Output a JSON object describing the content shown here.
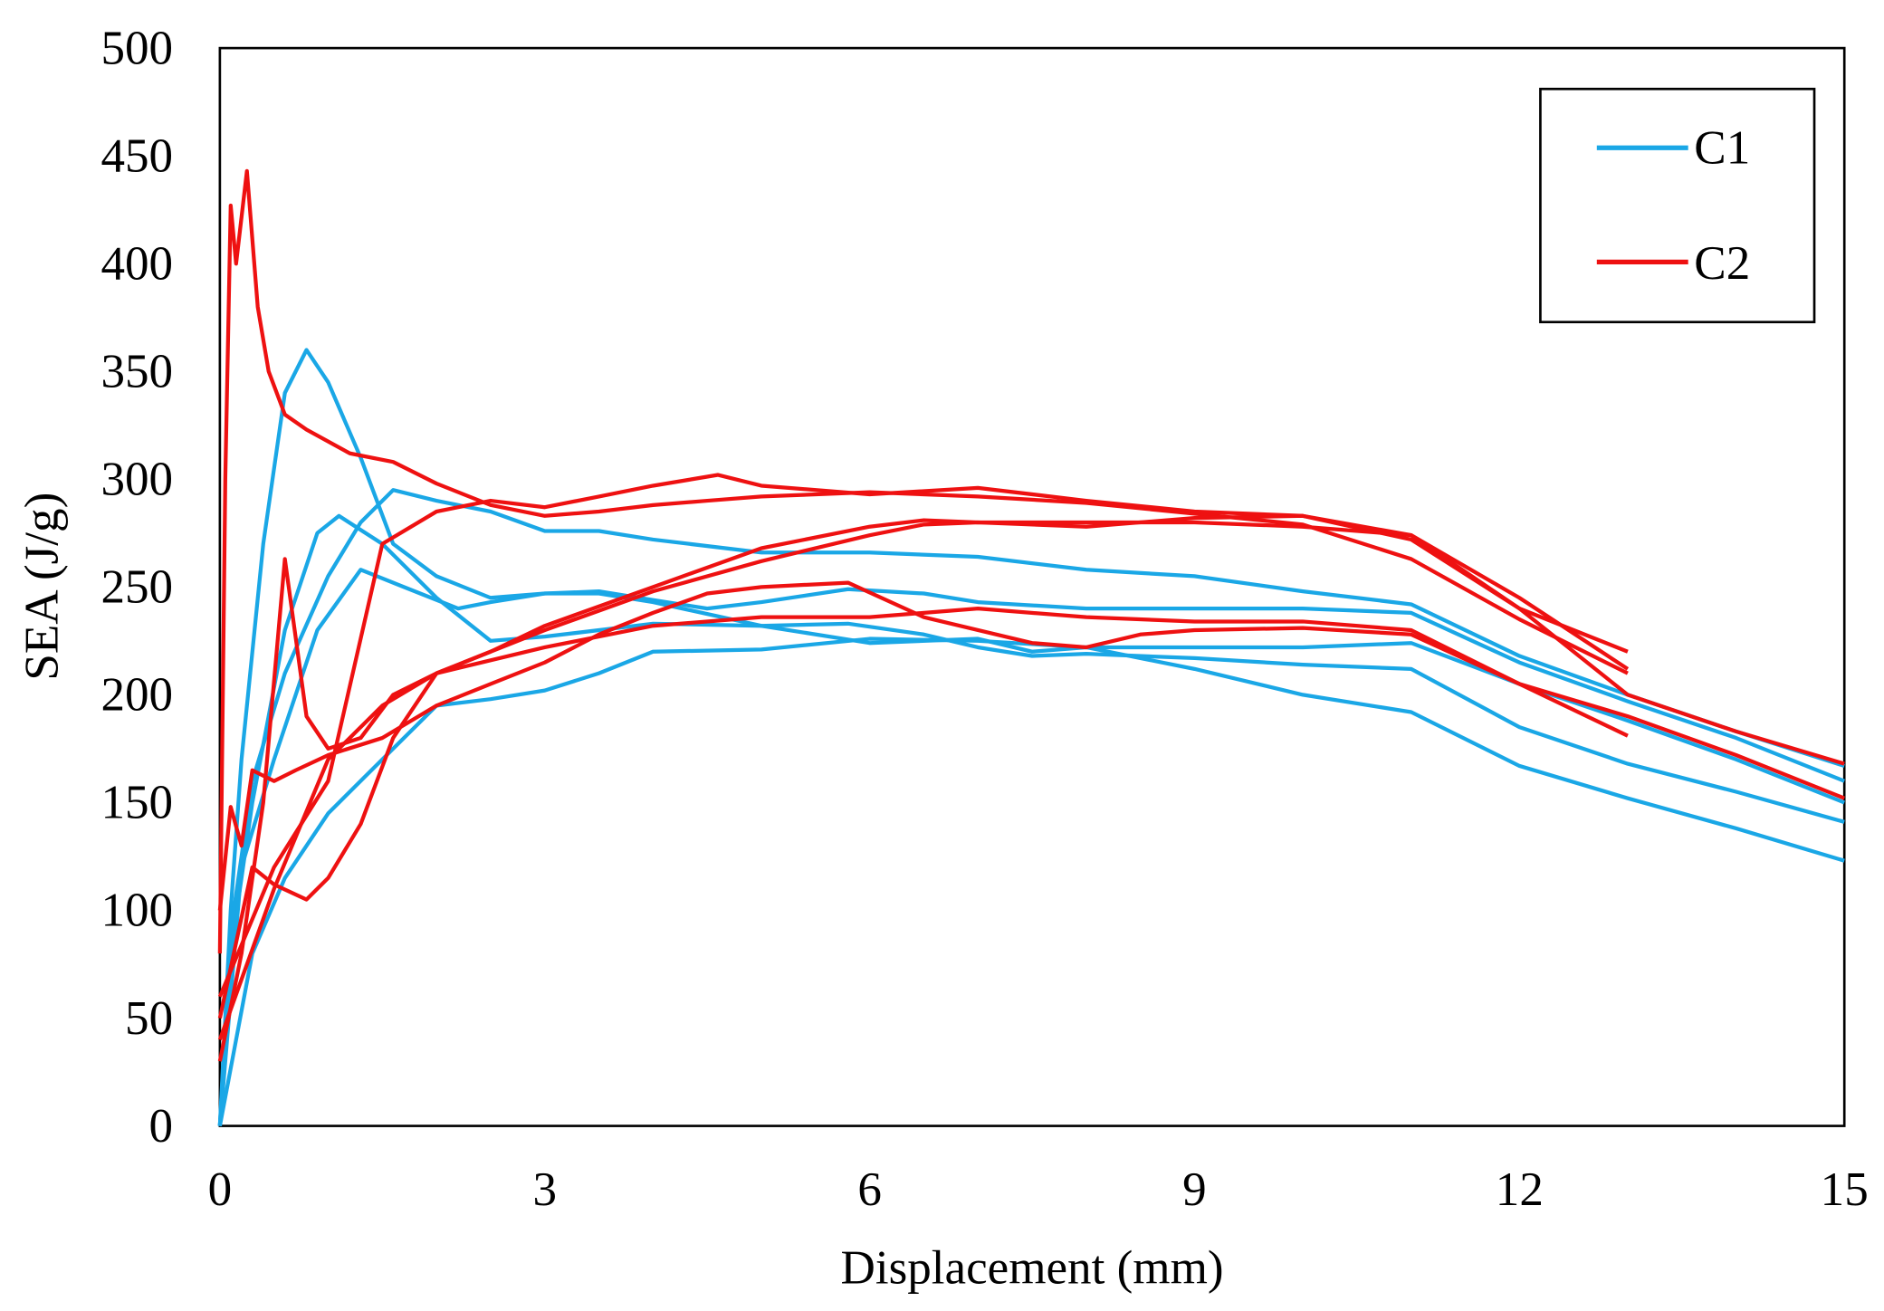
{
  "chart_data": {
    "type": "line",
    "title": "",
    "xlabel": "Displacement (mm)",
    "ylabel": "SEA (J/g)",
    "xlim": [
      0,
      15
    ],
    "ylim": [
      0,
      500
    ],
    "xticks": [
      0,
      3,
      6,
      9,
      12,
      15
    ],
    "yticks": [
      0,
      50,
      100,
      150,
      200,
      250,
      300,
      350,
      400,
      450,
      500
    ],
    "grid": false,
    "legend_position": "top-right",
    "legend": [
      {
        "name": "C1",
        "color": "#1AA7E6"
      },
      {
        "name": "C2",
        "color": "#EE1111"
      }
    ],
    "series": [
      {
        "name": "C1",
        "color": "#1AA7E6",
        "points": [
          [
            0,
            0
          ],
          [
            0.1,
            100
          ],
          [
            0.2,
            170
          ],
          [
            0.4,
            270
          ],
          [
            0.6,
            340
          ],
          [
            0.8,
            360
          ],
          [
            1.0,
            345
          ],
          [
            1.3,
            310
          ],
          [
            1.6,
            270
          ],
          [
            2.0,
            255
          ],
          [
            2.5,
            245
          ],
          [
            3,
            247
          ],
          [
            3.5,
            247
          ],
          [
            4,
            243
          ],
          [
            5,
            232
          ],
          [
            6,
            224
          ],
          [
            7,
            226
          ],
          [
            7.5,
            220
          ],
          [
            8,
            222
          ],
          [
            9,
            222
          ],
          [
            10,
            222
          ],
          [
            11,
            224
          ],
          [
            12,
            205
          ],
          [
            13,
            188
          ],
          [
            14,
            170
          ],
          [
            15,
            150
          ]
        ]
      },
      {
        "name": "C1",
        "color": "#1AA7E6",
        "points": [
          [
            0,
            0
          ],
          [
            0.1,
            80
          ],
          [
            0.3,
            150
          ],
          [
            0.6,
            230
          ],
          [
            0.9,
            275
          ],
          [
            1.1,
            283
          ],
          [
            1.5,
            270
          ],
          [
            2,
            245
          ],
          [
            2.5,
            225
          ],
          [
            3,
            227
          ],
          [
            4,
            233
          ],
          [
            5,
            232
          ],
          [
            5.8,
            233
          ],
          [
            6.5,
            228
          ],
          [
            7,
            222
          ],
          [
            7.5,
            218
          ],
          [
            8,
            219
          ],
          [
            9,
            217
          ],
          [
            10,
            214
          ],
          [
            11,
            212
          ],
          [
            12,
            185
          ],
          [
            13,
            168
          ],
          [
            14,
            155
          ],
          [
            15,
            141
          ]
        ]
      },
      {
        "name": "C1",
        "color": "#1AA7E6",
        "points": [
          [
            0,
            0
          ],
          [
            0.1,
            90
          ],
          [
            0.3,
            160
          ],
          [
            0.6,
            210
          ],
          [
            1.0,
            255
          ],
          [
            1.3,
            280
          ],
          [
            1.6,
            295
          ],
          [
            2,
            290
          ],
          [
            2.5,
            285
          ],
          [
            3,
            276
          ],
          [
            3.5,
            276
          ],
          [
            4,
            272
          ],
          [
            5,
            266
          ],
          [
            6,
            266
          ],
          [
            7,
            264
          ],
          [
            8,
            258
          ],
          [
            9,
            255
          ],
          [
            10,
            248
          ],
          [
            11,
            242
          ],
          [
            12,
            218
          ],
          [
            13,
            200
          ],
          [
            14,
            183
          ],
          [
            15,
            167
          ]
        ]
      },
      {
        "name": "C1",
        "color": "#1AA7E6",
        "points": [
          [
            0,
            0
          ],
          [
            0.3,
            80
          ],
          [
            0.6,
            115
          ],
          [
            1,
            145
          ],
          [
            1.5,
            170
          ],
          [
            2,
            195
          ],
          [
            2.5,
            198
          ],
          [
            3,
            202
          ],
          [
            3.5,
            210
          ],
          [
            4,
            220
          ],
          [
            5,
            221
          ],
          [
            6,
            226
          ],
          [
            7,
            225
          ],
          [
            8,
            222
          ],
          [
            9,
            212
          ],
          [
            10,
            200
          ],
          [
            11,
            192
          ],
          [
            12,
            167
          ],
          [
            13,
            152
          ],
          [
            14,
            138
          ],
          [
            15,
            123
          ]
        ]
      },
      {
        "name": "C1",
        "color": "#1AA7E6",
        "points": [
          [
            0,
            0
          ],
          [
            0.2,
            120
          ],
          [
            0.5,
            170
          ],
          [
            0.9,
            230
          ],
          [
            1.3,
            258
          ],
          [
            1.7,
            250
          ],
          [
            2.2,
            240
          ],
          [
            2.5,
            243
          ],
          [
            3,
            247
          ],
          [
            3.5,
            248
          ],
          [
            4,
            244
          ],
          [
            4.5,
            240
          ],
          [
            5,
            243
          ],
          [
            5.8,
            249
          ],
          [
            6.5,
            247
          ],
          [
            7,
            243
          ],
          [
            8,
            240
          ],
          [
            9,
            240
          ],
          [
            10,
            240
          ],
          [
            11,
            238
          ],
          [
            12,
            215
          ],
          [
            13,
            197
          ],
          [
            14,
            180
          ],
          [
            15,
            160
          ]
        ]
      },
      {
        "name": "C2",
        "color": "#EE1111",
        "points": [
          [
            0,
            80
          ],
          [
            0.05,
            300
          ],
          [
            0.1,
            427
          ],
          [
            0.15,
            400
          ],
          [
            0.25,
            443
          ],
          [
            0.35,
            380
          ],
          [
            0.45,
            350
          ],
          [
            0.6,
            330
          ],
          [
            0.8,
            323
          ],
          [
            1.2,
            312
          ],
          [
            1.6,
            308
          ],
          [
            2,
            298
          ],
          [
            2.5,
            288
          ],
          [
            3,
            283
          ],
          [
            3.5,
            285
          ],
          [
            4,
            288
          ],
          [
            4.5,
            290
          ],
          [
            5,
            292
          ],
          [
            6,
            294
          ],
          [
            7,
            292
          ],
          [
            8,
            289
          ],
          [
            9,
            284
          ],
          [
            10,
            279
          ],
          [
            11,
            263
          ],
          [
            12,
            235
          ],
          [
            13,
            210
          ]
        ]
      },
      {
        "name": "C2",
        "color": "#EE1111",
        "points": [
          [
            0,
            30
          ],
          [
            0.2,
            80
          ],
          [
            0.4,
            150
          ],
          [
            0.6,
            263
          ],
          [
            0.8,
            190
          ],
          [
            1.0,
            175
          ],
          [
            1.3,
            180
          ],
          [
            1.6,
            200
          ],
          [
            2,
            210
          ],
          [
            2.5,
            220
          ],
          [
            3,
            230
          ],
          [
            4,
            248
          ],
          [
            5,
            262
          ],
          [
            6,
            274
          ],
          [
            6.5,
            279
          ],
          [
            7,
            280
          ],
          [
            8,
            278
          ],
          [
            9,
            282
          ],
          [
            10,
            283
          ],
          [
            11,
            272
          ],
          [
            12,
            240
          ],
          [
            13,
            220
          ]
        ]
      },
      {
        "name": "C2",
        "color": "#EE1111",
        "points": [
          [
            0,
            50
          ],
          [
            0.3,
            120
          ],
          [
            0.5,
            112
          ],
          [
            0.8,
            105
          ],
          [
            1,
            115
          ],
          [
            1.3,
            140
          ],
          [
            1.6,
            180
          ],
          [
            2,
            210
          ],
          [
            2.5,
            220
          ],
          [
            3,
            232
          ],
          [
            4,
            250
          ],
          [
            5,
            268
          ],
          [
            6,
            278
          ],
          [
            6.5,
            281
          ],
          [
            7,
            280
          ],
          [
            8,
            280
          ],
          [
            9,
            280
          ],
          [
            10,
            278
          ],
          [
            11,
            274
          ],
          [
            12,
            245
          ],
          [
            13,
            212
          ]
        ]
      },
      {
        "name": "C2",
        "color": "#EE1111",
        "points": [
          [
            0,
            100
          ],
          [
            0.1,
            148
          ],
          [
            0.2,
            130
          ],
          [
            0.3,
            165
          ],
          [
            0.5,
            160
          ],
          [
            0.7,
            165
          ],
          [
            1,
            172
          ],
          [
            1.5,
            180
          ],
          [
            2,
            195
          ],
          [
            2.5,
            205
          ],
          [
            3,
            215
          ],
          [
            3.5,
            228
          ],
          [
            4,
            238
          ],
          [
            4.5,
            247
          ],
          [
            5,
            250
          ],
          [
            5.8,
            252
          ],
          [
            6.5,
            236
          ],
          [
            7,
            230
          ],
          [
            7.5,
            224
          ],
          [
            8,
            222
          ],
          [
            8.5,
            228
          ],
          [
            9,
            230
          ],
          [
            10,
            231
          ],
          [
            11,
            228
          ],
          [
            12,
            205
          ],
          [
            13,
            181
          ]
        ]
      },
      {
        "name": "C2",
        "color": "#EE1111",
        "points": [
          [
            0,
            60
          ],
          [
            0.5,
            120
          ],
          [
            1,
            160
          ],
          [
            1.5,
            270
          ],
          [
            2,
            285
          ],
          [
            2.5,
            290
          ],
          [
            3,
            287
          ],
          [
            3.5,
            292
          ],
          [
            4,
            297
          ],
          [
            4.6,
            302
          ],
          [
            5,
            297
          ],
          [
            6,
            293
          ],
          [
            7,
            296
          ],
          [
            8,
            290
          ],
          [
            9,
            285
          ],
          [
            10,
            283
          ],
          [
            11,
            274
          ],
          [
            12,
            240
          ],
          [
            13,
            200
          ],
          [
            14,
            183
          ],
          [
            15,
            168
          ]
        ]
      },
      {
        "name": "C2",
        "color": "#EE1111",
        "points": [
          [
            0,
            40
          ],
          [
            0.5,
            110
          ],
          [
            1,
            170
          ],
          [
            1.5,
            195
          ],
          [
            2,
            210
          ],
          [
            3,
            222
          ],
          [
            4,
            232
          ],
          [
            5,
            236
          ],
          [
            6,
            236
          ],
          [
            7,
            240
          ],
          [
            8,
            236
          ],
          [
            9,
            234
          ],
          [
            10,
            234
          ],
          [
            11,
            230
          ],
          [
            12,
            205
          ],
          [
            13,
            190
          ],
          [
            14,
            172
          ],
          [
            15,
            152
          ]
        ]
      }
    ]
  }
}
